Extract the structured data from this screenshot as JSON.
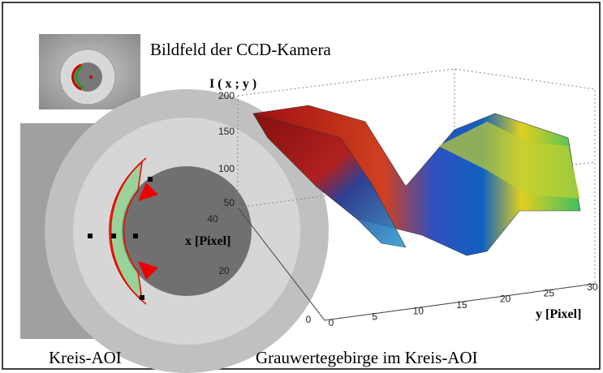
{
  "figure": {
    "caption_top": "Bildfeld der CCD-Kamera",
    "caption_left": "Kreis-AOI",
    "caption_right": "Grauwertegebirge im Kreis-AOI",
    "plot": {
      "z_label": "I ( x ; y )",
      "x_label": "x [Pixel]",
      "y_label": "y [Pixel]",
      "z_ticks": [
        200,
        150,
        100,
        50
      ],
      "x_ticks": [
        40,
        20,
        0
      ],
      "y_ticks": [
        0,
        5,
        10,
        15,
        20,
        25,
        30
      ]
    }
  }
}
